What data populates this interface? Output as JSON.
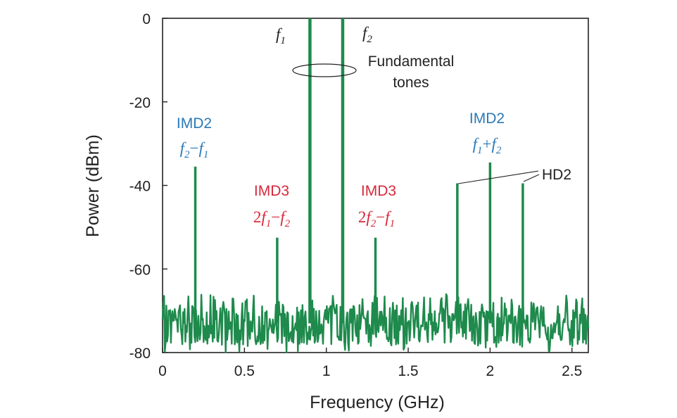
{
  "chart_data": {
    "type": "line",
    "xlabel": "Frequency (GHz)",
    "ylabel": "Power (dBm)",
    "xlim": [
      0,
      2.6
    ],
    "ylim": [
      -80,
      0
    ],
    "x_ticks": [
      "0",
      "0.5",
      "1",
      "1.5",
      "2",
      "2.5"
    ],
    "y_ticks": [
      "0",
      "-20",
      "-40",
      "-60",
      "-80"
    ],
    "grid": false,
    "colors": {
      "trace": "#1e8a4c",
      "imd2": "#2a7ab8",
      "imd3": "#d8283a",
      "ann": "#222222"
    },
    "noise_floor": {
      "x_range": [
        0,
        2.6
      ],
      "y_range": [
        -80,
        -66
      ],
      "typical": -73
    },
    "spurs": [
      {
        "x": 0.2,
        "y": -35.5,
        "label": "IMD2 f2 - f1"
      },
      {
        "x": 0.7,
        "y": -52.5,
        "label": "IMD3 2f1 - f2"
      },
      {
        "x": 0.9,
        "y": 0,
        "label": "f1"
      },
      {
        "x": 1.1,
        "y": 0,
        "label": "f2"
      },
      {
        "x": 1.3,
        "y": -52.5,
        "label": "IMD3 2f2 - f1"
      },
      {
        "x": 1.8,
        "y": -39.5,
        "label": "HD2"
      },
      {
        "x": 2.0,
        "y": -34.5,
        "label": "IMD2 f1 + f2"
      },
      {
        "x": 2.2,
        "y": -39.5,
        "label": "HD2"
      }
    ],
    "annotations": {
      "f1": {
        "var": "f",
        "sub": "1"
      },
      "f2": {
        "var": "f",
        "sub": "2"
      },
      "fundamental_line1": "Fundamental",
      "fundamental_line2": "tones",
      "imd2_left": {
        "title": "IMD2",
        "a": "f",
        "a_sub": "2",
        "op": "−",
        "b": "f",
        "b_sub": "1"
      },
      "imd3_left": {
        "title": "IMD3",
        "coef": "2",
        "a": "f",
        "a_sub": "1",
        "op": "−",
        "b": "f",
        "b_sub": "2"
      },
      "imd3_right": {
        "title": "IMD3",
        "coef": "2",
        "a": "f",
        "a_sub": "2",
        "op": "−",
        "b": "f",
        "b_sub": "1"
      },
      "imd2_right": {
        "title": "IMD2",
        "a": "f",
        "a_sub": "1",
        "op": "+",
        "b": "f",
        "b_sub": "2"
      },
      "hd2": "HD2"
    }
  }
}
